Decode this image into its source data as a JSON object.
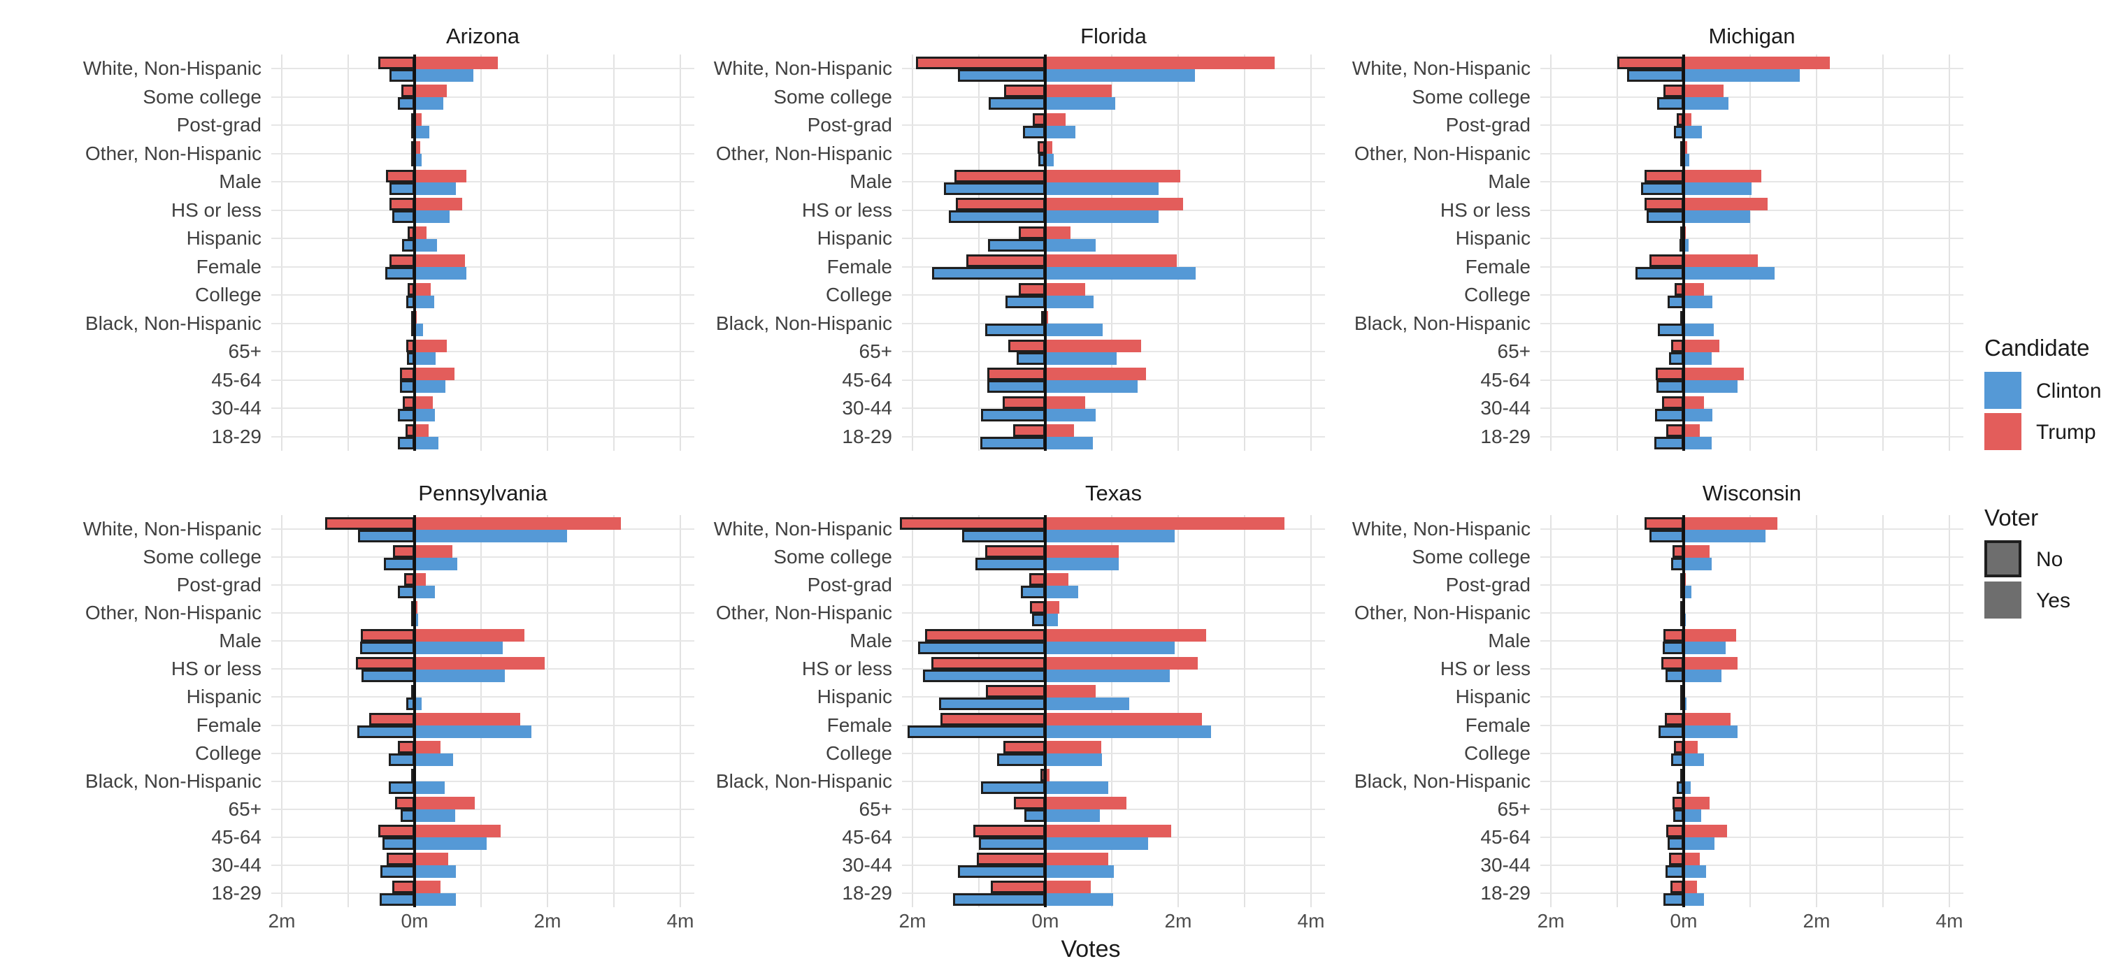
{
  "chart_data": {
    "type": "bar",
    "orientation": "horizontal-diverging",
    "title": "",
    "xlabel": "Votes",
    "unit": "millions of votes",
    "x_ticks": {
      "labels": [
        "2m",
        "0m",
        "2m",
        "4m"
      ],
      "values_m": [
        -2,
        0,
        2,
        4
      ]
    },
    "xlim_m": [
      -2.15,
      4.2
    ],
    "gridlines_m": [
      -2,
      -1,
      0,
      1,
      2,
      3,
      4
    ],
    "grid": "on",
    "legend_position": "right",
    "categories": [
      "White, Non-Hispanic",
      "Some college",
      "Post-grad",
      "Other, Non-Hispanic",
      "Male",
      "HS or less",
      "Hispanic",
      "Female",
      "College",
      "Black, Non-Hispanic",
      "65+",
      "45-64",
      "30-44",
      "18-29"
    ],
    "note": "Each category shows two bars (Trump red above, Clinton blue below). Portion left of 0 with thick outline = Voter No, portion right of 0 = Voter Yes. Values in millions of votes.",
    "legend": {
      "candidate": {
        "title": "Candidate",
        "items": [
          {
            "label": "Clinton",
            "color": "#5599D6"
          },
          {
            "label": "Trump",
            "color": "#E35D5B"
          }
        ]
      },
      "voter": {
        "title": "Voter",
        "items": [
          {
            "label": "No",
            "style": "thick-black-outline",
            "fill": "#6e6e6e"
          },
          {
            "label": "Yes",
            "style": "plain",
            "fill": "#6e6e6e"
          }
        ]
      }
    },
    "facets": [
      {
        "state": "Arizona",
        "trump_no": [
          0.55,
          0.2,
          0.03,
          0.03,
          0.43,
          0.38,
          0.1,
          0.38,
          0.1,
          0.02,
          0.13,
          0.22,
          0.18,
          0.14
        ],
        "trump_yes": [
          1.25,
          0.48,
          0.1,
          0.08,
          0.78,
          0.72,
          0.18,
          0.76,
          0.24,
          0.03,
          0.48,
          0.6,
          0.27,
          0.21
        ],
        "clinton_no": [
          0.38,
          0.25,
          0.05,
          0.03,
          0.38,
          0.34,
          0.19,
          0.44,
          0.13,
          0.03,
          0.12,
          0.22,
          0.25,
          0.25
        ],
        "clinton_yes": [
          0.88,
          0.43,
          0.22,
          0.1,
          0.62,
          0.53,
          0.34,
          0.78,
          0.29,
          0.13,
          0.32,
          0.46,
          0.31,
          0.36
        ]
      },
      {
        "state": "Florida",
        "trump_no": [
          1.95,
          0.62,
          0.19,
          0.12,
          1.37,
          1.35,
          0.4,
          1.19,
          0.4,
          0.06,
          0.56,
          0.87,
          0.64,
          0.48
        ],
        "trump_yes": [
          3.45,
          1.0,
          0.3,
          0.1,
          2.03,
          2.07,
          0.38,
          1.98,
          0.6,
          0.04,
          1.44,
          1.52,
          0.6,
          0.43
        ],
        "clinton_no": [
          1.32,
          0.85,
          0.34,
          0.1,
          1.53,
          1.45,
          0.86,
          1.7,
          0.6,
          0.9,
          0.43,
          0.87,
          0.97,
          0.98
        ],
        "clinton_yes": [
          2.25,
          1.05,
          0.45,
          0.13,
          1.71,
          1.7,
          0.76,
          2.26,
          0.73,
          0.86,
          1.07,
          1.39,
          0.76,
          0.72
        ]
      },
      {
        "state": "Michigan",
        "trump_no": [
          1.0,
          0.3,
          0.1,
          0.03,
          0.59,
          0.59,
          0.02,
          0.52,
          0.14,
          0.02,
          0.19,
          0.42,
          0.33,
          0.26
        ],
        "trump_yes": [
          2.2,
          0.6,
          0.12,
          0.05,
          1.17,
          1.26,
          0.03,
          1.12,
          0.3,
          0.02,
          0.54,
          0.9,
          0.31,
          0.24
        ],
        "clinton_no": [
          0.85,
          0.4,
          0.15,
          0.04,
          0.64,
          0.56,
          0.06,
          0.73,
          0.24,
          0.39,
          0.22,
          0.41,
          0.43,
          0.44
        ],
        "clinton_yes": [
          1.75,
          0.67,
          0.27,
          0.08,
          1.02,
          1.0,
          0.07,
          1.37,
          0.43,
          0.45,
          0.42,
          0.81,
          0.43,
          0.42
        ]
      },
      {
        "state": "Pennsylvania",
        "trump_no": [
          1.35,
          0.33,
          0.16,
          0.04,
          0.81,
          0.88,
          0.02,
          0.68,
          0.25,
          0.01,
          0.29,
          0.55,
          0.42,
          0.34
        ],
        "trump_yes": [
          3.1,
          0.57,
          0.17,
          0.04,
          1.65,
          1.96,
          0.02,
          1.59,
          0.39,
          0.01,
          0.91,
          1.29,
          0.51,
          0.39
        ],
        "clinton_no": [
          0.85,
          0.46,
          0.25,
          0.04,
          0.82,
          0.8,
          0.13,
          0.86,
          0.39,
          0.39,
          0.21,
          0.48,
          0.52,
          0.53
        ],
        "clinton_yes": [
          2.3,
          0.64,
          0.3,
          0.05,
          1.33,
          1.36,
          0.1,
          1.76,
          0.58,
          0.45,
          0.61,
          1.08,
          0.62,
          0.62
        ]
      },
      {
        "state": "Texas",
        "trump_no": [
          2.19,
          0.9,
          0.24,
          0.23,
          1.81,
          1.72,
          0.89,
          1.58,
          0.63,
          0.07,
          0.47,
          1.08,
          1.03,
          0.82
        ],
        "trump_yes": [
          3.6,
          1.1,
          0.35,
          0.21,
          2.42,
          2.29,
          0.76,
          2.36,
          0.84,
          0.06,
          1.22,
          1.89,
          0.95,
          0.68
        ],
        "clinton_no": [
          1.25,
          1.05,
          0.37,
          0.2,
          1.92,
          1.84,
          1.6,
          2.07,
          0.73,
          0.97,
          0.32,
          1.0,
          1.32,
          1.39
        ],
        "clinton_yes": [
          1.95,
          1.1,
          0.49,
          0.19,
          1.95,
          1.87,
          1.26,
          2.49,
          0.85,
          0.95,
          0.82,
          1.55,
          1.03,
          1.02
        ]
      },
      {
        "state": "Wisconsin",
        "trump_no": [
          0.59,
          0.17,
          0.02,
          0.01,
          0.31,
          0.34,
          0.01,
          0.28,
          0.15,
          0.01,
          0.17,
          0.26,
          0.22,
          0.2
        ],
        "trump_yes": [
          1.41,
          0.39,
          0.03,
          0.02,
          0.79,
          0.81,
          0.01,
          0.7,
          0.21,
          0.01,
          0.39,
          0.65,
          0.24,
          0.2
        ],
        "clinton_no": [
          0.52,
          0.19,
          0.04,
          0.02,
          0.32,
          0.27,
          0.02,
          0.38,
          0.19,
          0.11,
          0.16,
          0.24,
          0.27,
          0.3
        ],
        "clinton_yes": [
          1.23,
          0.42,
          0.12,
          0.03,
          0.63,
          0.57,
          0.04,
          0.81,
          0.3,
          0.1,
          0.26,
          0.46,
          0.34,
          0.31
        ]
      }
    ]
  },
  "colors": {
    "clinton": "#5599D6",
    "trump": "#E35D5B",
    "bar_outline": "#1f1f1f",
    "zero_line": "#111111",
    "gridline": "#e4e4e4",
    "axis_text": "#4d4d4d",
    "title_text": "#1a1a1a",
    "voter_swatch_fill": "#6e6e6e",
    "background": "#ffffff"
  }
}
